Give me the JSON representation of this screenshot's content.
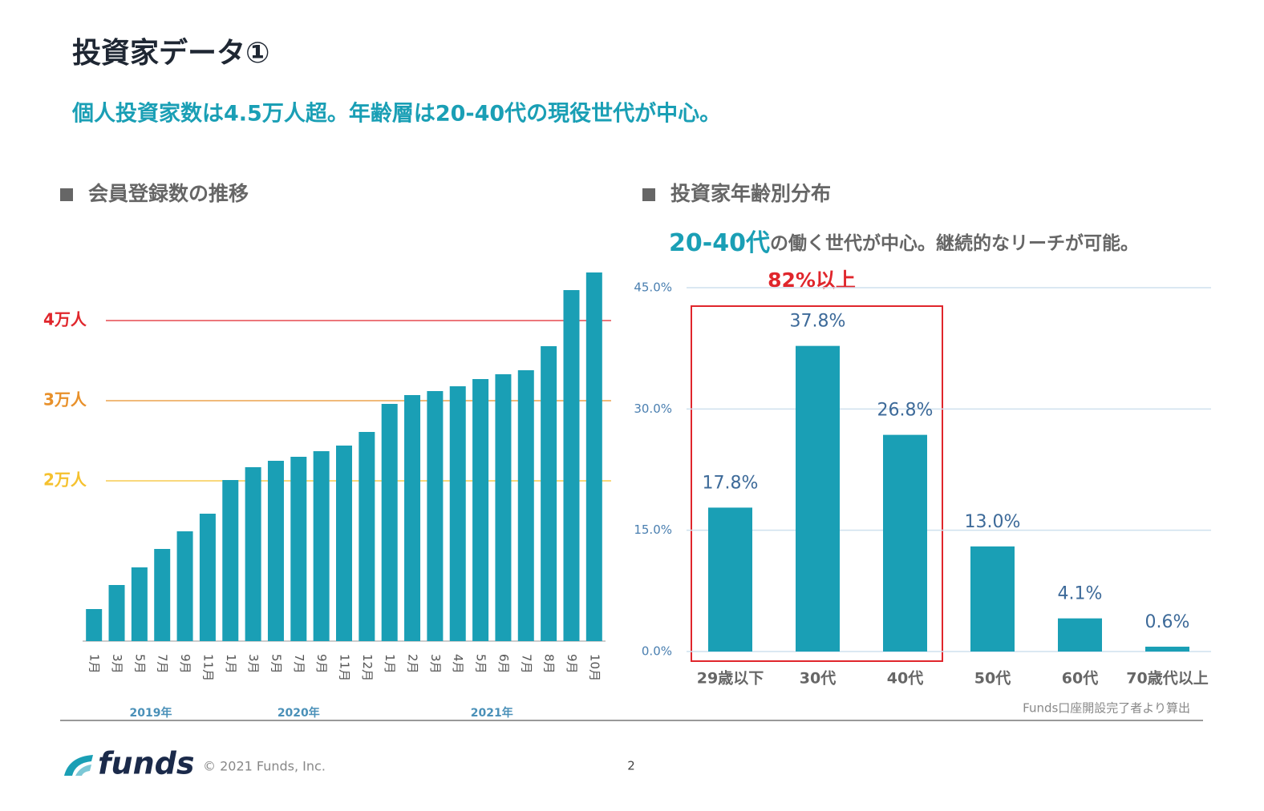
{
  "header": {
    "title": "投資家データ①",
    "headline": "個人投資家数は4.5万人超。年齢層は20-40代の現役世代が中心。"
  },
  "chart_data": [
    {
      "type": "bar",
      "title": "会員登録数の推移",
      "categories": [
        "1月",
        "3月",
        "5月",
        "7月",
        "9月",
        "11月",
        "1月",
        "3月",
        "5月",
        "7月",
        "9月",
        "11月",
        "12月",
        "1月",
        "2月",
        "3月",
        "4月",
        "5月",
        "6月",
        "7月",
        "8月",
        "9月",
        "10月"
      ],
      "x_groups": [
        "2019年",
        "2020年",
        "2021年"
      ],
      "values": [
        4000,
        7000,
        9200,
        11500,
        13700,
        15900,
        20100,
        21700,
        22500,
        23000,
        23700,
        24400,
        26100,
        29600,
        30700,
        31200,
        31800,
        32700,
        33300,
        33800,
        36800,
        43800,
        46000
      ],
      "color": "#1a9fb5",
      "ylim": [
        0,
        46000
      ],
      "yticks": [
        {
          "value": 20000,
          "label": "2万人"
        },
        {
          "value": 30000,
          "label": "3万人"
        },
        {
          "value": 40000,
          "label": "4万人"
        }
      ],
      "ytick_colors": [
        "#f5c12e",
        "#e8902a",
        "#e0262c"
      ],
      "grid": false
    },
    {
      "type": "bar",
      "title": "投資家年齢別分布",
      "subtitle_highlight": "20-40代",
      "subtitle": "の働く世代が中心。継続的なリーチが可能。",
      "annotation": "82%以上",
      "categories": [
        "29歳以下",
        "30代",
        "40代",
        "50代",
        "60代",
        "70歳代以上"
      ],
      "values": [
        17.8,
        37.8,
        26.8,
        13.0,
        4.1,
        0.6
      ],
      "value_labels": [
        "17.8%",
        "37.8%",
        "26.8%",
        "13.0%",
        "4.1%",
        "0.6%"
      ],
      "color": "#1a9fb5",
      "ylim": [
        0,
        45
      ],
      "yticks": [
        {
          "value": 0,
          "label": "0.0%"
        },
        {
          "value": 15,
          "label": "15.0%"
        },
        {
          "value": 30,
          "label": "30.0%"
        },
        {
          "value": 45,
          "label": "45.0%"
        }
      ],
      "grid": true,
      "source": "Funds口座開設完了者より算出"
    }
  ],
  "footer": {
    "logo": "funds",
    "copyright": "© 2021 Funds, Inc.",
    "page": "2"
  }
}
